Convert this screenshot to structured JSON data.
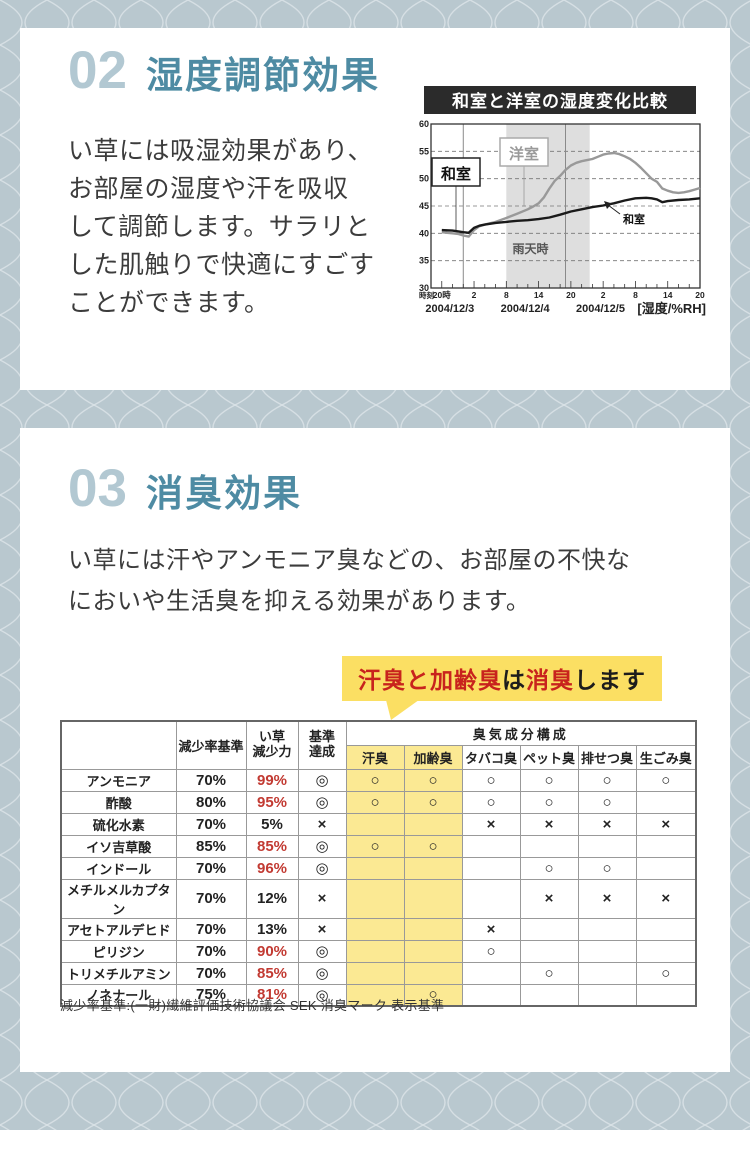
{
  "colors": {
    "background_blue": "#b9c8cf",
    "pattern_line": "#dde5e8",
    "accent_teal": "#4e8ba3",
    "number_blue": "#b2c8d2",
    "bubble_yellow": "#fbdf63",
    "highlight_yellow": "#fbe993",
    "alert_red": "#c23a32",
    "chart_title_bg": "#2b2b2b"
  },
  "humidity_section": {
    "number": "02",
    "title": "湿度調節効果",
    "body_lines": [
      "い草には吸湿効果があり、",
      "お部屋の湿度や汗を吸収",
      "して調節します。サラリと",
      "した肌触りで快適にすごす",
      "ことができます。"
    ]
  },
  "chart_data": {
    "type": "line",
    "title": "和室と洋室の湿度変化比較",
    "axis_corner_label": "時刻",
    "x_hour_tick_labels": [
      "20時",
      "2",
      "8",
      "14",
      "20",
      "2",
      "8",
      "14",
      "20"
    ],
    "x_hour_tick_positions": [
      0,
      6,
      12,
      18,
      24,
      30,
      36,
      42,
      48
    ],
    "date_labels": [
      "2004/12/3",
      "2004/12/4",
      "2004/12/5"
    ],
    "unit_note": "[湿度/%RH]",
    "ylim": [
      30,
      60
    ],
    "y_ticks": [
      60,
      55,
      50,
      45,
      40,
      35,
      30
    ],
    "grid": "dashed-horizontal",
    "rain_band": {
      "label": "雨天時",
      "from_hour": 12,
      "to_hour": 27.5
    },
    "vertical_lines_hours": [
      4,
      23
    ],
    "annotations": {
      "washitsu_box_label": "和室",
      "yoshitsu_box_label": "洋室",
      "washitsu_arrow_label": "和室"
    },
    "series": [
      {
        "name": "洋室",
        "color": "#999999",
        "points": [
          [
            0,
            40.2
          ],
          [
            1,
            40.1
          ],
          [
            2,
            40.0
          ],
          [
            3,
            39.9
          ],
          [
            4,
            39.6
          ],
          [
            5,
            39.4
          ],
          [
            6,
            40.6
          ],
          [
            7,
            41.3
          ],
          [
            8,
            41.6
          ],
          [
            10,
            42.1
          ],
          [
            12,
            42.8
          ],
          [
            14,
            43.6
          ],
          [
            16,
            44.4
          ],
          [
            17,
            44.9
          ],
          [
            18,
            45.5
          ],
          [
            19,
            46.6
          ],
          [
            20,
            48.2
          ],
          [
            21,
            49.6
          ],
          [
            22,
            50.5
          ],
          [
            23,
            51.6
          ],
          [
            24,
            52.4
          ],
          [
            25,
            52.9
          ],
          [
            26,
            53.2
          ],
          [
            27,
            53.4
          ],
          [
            28,
            53.6
          ],
          [
            29,
            54.0
          ],
          [
            30,
            54.4
          ],
          [
            31,
            54.6
          ],
          [
            32,
            54.7
          ],
          [
            33,
            54.5
          ],
          [
            34,
            54.1
          ],
          [
            35,
            53.6
          ],
          [
            36,
            52.9
          ],
          [
            37,
            52.0
          ],
          [
            38,
            51.0
          ],
          [
            39,
            50.0
          ],
          [
            40,
            49.4
          ],
          [
            41,
            48.2
          ],
          [
            42,
            47.8
          ],
          [
            43,
            47.5
          ],
          [
            44,
            47.4
          ],
          [
            45,
            47.5
          ],
          [
            46,
            47.7
          ],
          [
            47,
            48.0
          ],
          [
            48,
            48.3
          ]
        ]
      },
      {
        "name": "和室",
        "color": "#1a1a1a",
        "points": [
          [
            0,
            40.6
          ],
          [
            2,
            40.5
          ],
          [
            4,
            40.2
          ],
          [
            5,
            40.1
          ],
          [
            6,
            41.0
          ],
          [
            7,
            41.4
          ],
          [
            8,
            41.6
          ],
          [
            10,
            41.9
          ],
          [
            12,
            42.1
          ],
          [
            14,
            42.3
          ],
          [
            16,
            42.4
          ],
          [
            18,
            42.6
          ],
          [
            20,
            42.9
          ],
          [
            22,
            43.4
          ],
          [
            24,
            44.0
          ],
          [
            26,
            44.4
          ],
          [
            28,
            44.8
          ],
          [
            30,
            45.1
          ],
          [
            32,
            45.5
          ],
          [
            34,
            46.0
          ],
          [
            36,
            46.4
          ],
          [
            38,
            46.5
          ],
          [
            39,
            46.4
          ],
          [
            40,
            46.2
          ],
          [
            41,
            45.7
          ],
          [
            42,
            45.9
          ],
          [
            44,
            46.1
          ],
          [
            46,
            46.2
          ],
          [
            48,
            46.4
          ]
        ]
      }
    ]
  },
  "deodorant_section": {
    "number": "03",
    "title": "消臭効果",
    "body_lines": [
      "い草には汗やアンモニア臭などの、お部屋の不快な",
      "においや生活臭を抑える効果があります。"
    ],
    "bubble": {
      "segments": [
        {
          "text": "汗臭と加齢臭",
          "red": true
        },
        {
          "text": "は",
          "red": false
        },
        {
          "text": "消臭",
          "red": true
        },
        {
          "text": "します",
          "red": false
        }
      ]
    },
    "table": {
      "headers": {
        "reduction_standard": "減少率基準",
        "igusa_power": [
          "い草",
          "減少力"
        ],
        "standard_met": [
          "基準",
          "達成"
        ],
        "odor_group": "臭気成分構成",
        "odors": [
          "汗臭",
          "加齢臭",
          "タバコ臭",
          "ペット臭",
          "排せつ臭",
          "生ごみ臭"
        ]
      },
      "rows": [
        {
          "name": "アンモニア",
          "standard": "70%",
          "power": "99%",
          "power_red": true,
          "met": "◎",
          "marks": [
            "○",
            "○",
            "○",
            "○",
            "○",
            "○"
          ]
        },
        {
          "name": "酢酸",
          "standard": "80%",
          "power": "95%",
          "power_red": true,
          "met": "◎",
          "marks": [
            "○",
            "○",
            "○",
            "○",
            "○",
            ""
          ]
        },
        {
          "name": "硫化水素",
          "standard": "70%",
          "power": "5%",
          "power_red": false,
          "met": "×",
          "marks": [
            "",
            "",
            "×",
            "×",
            "×",
            "×"
          ]
        },
        {
          "name": "イソ吉草酸",
          "standard": "85%",
          "power": "85%",
          "power_red": true,
          "met": "◎",
          "marks": [
            "○",
            "○",
            "",
            "",
            "",
            ""
          ]
        },
        {
          "name": "インドール",
          "standard": "70%",
          "power": "96%",
          "power_red": true,
          "met": "◎",
          "marks": [
            "",
            "",
            "",
            "○",
            "○",
            ""
          ]
        },
        {
          "name": "メチルメルカプタン",
          "standard": "70%",
          "power": "12%",
          "power_red": false,
          "met": "×",
          "marks": [
            "",
            "",
            "",
            "×",
            "×",
            "×"
          ]
        },
        {
          "name": "アセトアルデヒド",
          "standard": "70%",
          "power": "13%",
          "power_red": false,
          "met": "×",
          "marks": [
            "",
            "",
            "×",
            "",
            "",
            ""
          ]
        },
        {
          "name": "ピリジン",
          "standard": "70%",
          "power": "90%",
          "power_red": true,
          "met": "◎",
          "marks": [
            "",
            "",
            "○",
            "",
            "",
            ""
          ]
        },
        {
          "name": "トリメチルアミン",
          "standard": "70%",
          "power": "85%",
          "power_red": true,
          "met": "◎",
          "marks": [
            "",
            "",
            "",
            "○",
            "",
            "○"
          ]
        },
        {
          "name": "ノネナール",
          "standard": "75%",
          "power": "81%",
          "power_red": true,
          "met": "◎",
          "marks": [
            "",
            "○",
            "",
            "",
            "",
            ""
          ]
        }
      ],
      "note": "減少率基準:(一財)繊維評価技術協議会 SEK 消臭マーク 表示基準"
    }
  }
}
